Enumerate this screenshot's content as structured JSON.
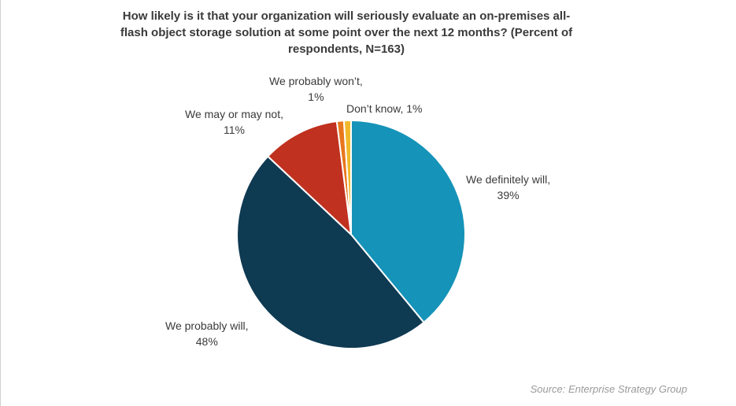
{
  "chart_data": {
    "type": "pie",
    "title": "How likely is it that your organization will seriously evaluate an on-premises all-flash object storage solution at some point over the next 12 months? (Percent of respondents, N=163)",
    "slices": [
      {
        "label": "We definitely will,",
        "pct_text": "39%",
        "value": 39,
        "color": "#1593b8"
      },
      {
        "label": "We probably will,",
        "pct_text": "48%",
        "value": 48,
        "color": "#0e3a52"
      },
      {
        "label": "We may or may not,",
        "pct_text": "11%",
        "value": 11,
        "color": "#c0311f"
      },
      {
        "label": "We probably won’t,",
        "pct_text": "1%",
        "value": 1,
        "color": "#e8771e"
      },
      {
        "label": "Don’t know, 1%",
        "pct_text": "",
        "value": 1,
        "color": "#f2b82a"
      }
    ],
    "source": "Source: Enterprise Strategy Group"
  }
}
